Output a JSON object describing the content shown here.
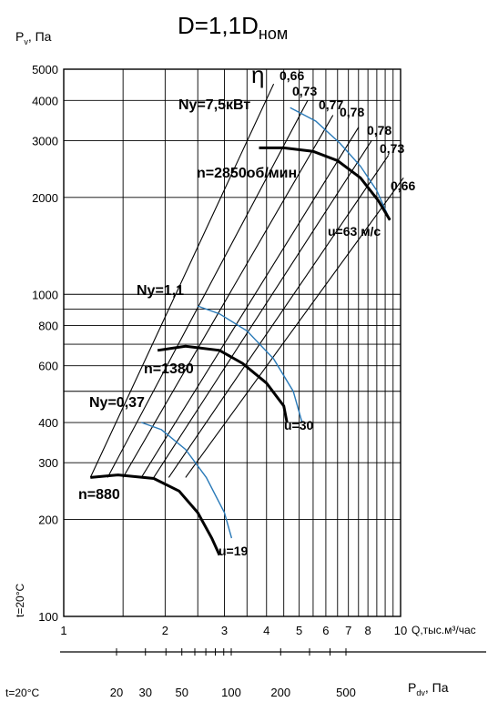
{
  "chart_data": {
    "type": "line",
    "title": "D=1,1D",
    "title_subscript": "ном",
    "y_axis": {
      "label_main": "P",
      "label_sub": "v",
      "label_unit": ", Па",
      "scale": "log",
      "range": [
        100,
        5000
      ],
      "ticks": [
        100,
        200,
        300,
        400,
        600,
        800,
        1000,
        2000,
        3000,
        4000,
        5000
      ]
    },
    "x_axis": {
      "label": "Q,тыс.м³/час",
      "scale": "log",
      "range": [
        1,
        10
      ],
      "ticks": [
        1,
        2,
        3,
        4,
        5,
        6,
        7,
        8,
        10
      ]
    },
    "secondary_x_axis": {
      "label_main": "P",
      "label_sub": "dv",
      "label_unit": ", Па",
      "ticks": [
        20,
        30,
        50,
        100,
        200,
        500
      ]
    },
    "temperature_label": "t=20°C",
    "pressure_curves": [
      {
        "name": "n=2850об/мин",
        "points": [
          [
            3.8,
            2850
          ],
          [
            4.5,
            2850
          ],
          [
            5.5,
            2780
          ],
          [
            6.5,
            2600
          ],
          [
            7.6,
            2300
          ],
          [
            8.6,
            1950
          ],
          [
            9.3,
            1700
          ]
        ]
      },
      {
        "name": "n=1380",
        "points": [
          [
            1.9,
            670
          ],
          [
            2.3,
            690
          ],
          [
            2.9,
            670
          ],
          [
            3.4,
            610
          ],
          [
            4.0,
            530
          ],
          [
            4.5,
            450
          ],
          [
            4.6,
            400
          ]
        ]
      },
      {
        "name": "n=880",
        "points": [
          [
            1.2,
            270
          ],
          [
            1.45,
            275
          ],
          [
            1.85,
            268
          ],
          [
            2.2,
            245
          ],
          [
            2.5,
            210
          ],
          [
            2.75,
            175
          ],
          [
            2.9,
            155
          ]
        ]
      }
    ],
    "power_curves": [
      {
        "name": "Nу=7,5кВт",
        "points": [
          [
            4.7,
            3800
          ],
          [
            5.6,
            3450
          ],
          [
            6.6,
            2950
          ],
          [
            7.6,
            2500
          ],
          [
            8.5,
            2100
          ],
          [
            9.3,
            1700
          ]
        ]
      },
      {
        "name": "Nу=1,1",
        "points": [
          [
            2.5,
            920
          ],
          [
            2.9,
            870
          ],
          [
            3.5,
            770
          ],
          [
            4.2,
            630
          ],
          [
            4.8,
            500
          ],
          [
            5.1,
            400
          ]
        ]
      },
      {
        "name": "Nу=0,37",
        "points": [
          [
            1.7,
            400
          ],
          [
            1.95,
            380
          ],
          [
            2.3,
            330
          ],
          [
            2.65,
            270
          ],
          [
            3.0,
            210
          ],
          [
            3.15,
            175
          ]
        ]
      }
    ],
    "velocity_labels": [
      "u=63 м/с",
      "u=30",
      "u=19"
    ],
    "efficiency_label": "η",
    "efficiency_lines": [
      {
        "name": "0,66",
        "points": [
          [
            1.2,
            270
          ],
          [
            4.2,
            4500
          ]
        ]
      },
      {
        "name": "0,73",
        "points": [
          [
            1.35,
            270
          ],
          [
            5.3,
            4000
          ]
        ]
      },
      {
        "name": "0,77",
        "points": [
          [
            1.5,
            270
          ],
          [
            6.3,
            3600
          ]
        ]
      },
      {
        "name": "0,78",
        "points": [
          [
            1.7,
            270
          ],
          [
            7.5,
            3300
          ]
        ]
      },
      {
        "name": "0,78",
        "points": [
          [
            1.85,
            270
          ],
          [
            8.2,
            3000
          ]
        ]
      },
      {
        "name": "0,73",
        "points": [
          [
            2.05,
            270
          ],
          [
            9.2,
            2700
          ]
        ]
      },
      {
        "name": "0,66",
        "points": [
          [
            2.3,
            270
          ],
          [
            10.2,
            2300
          ]
        ]
      }
    ],
    "colors": {
      "pressure": "#000000",
      "power": "#2a7ab8",
      "grid": "#000000"
    }
  }
}
